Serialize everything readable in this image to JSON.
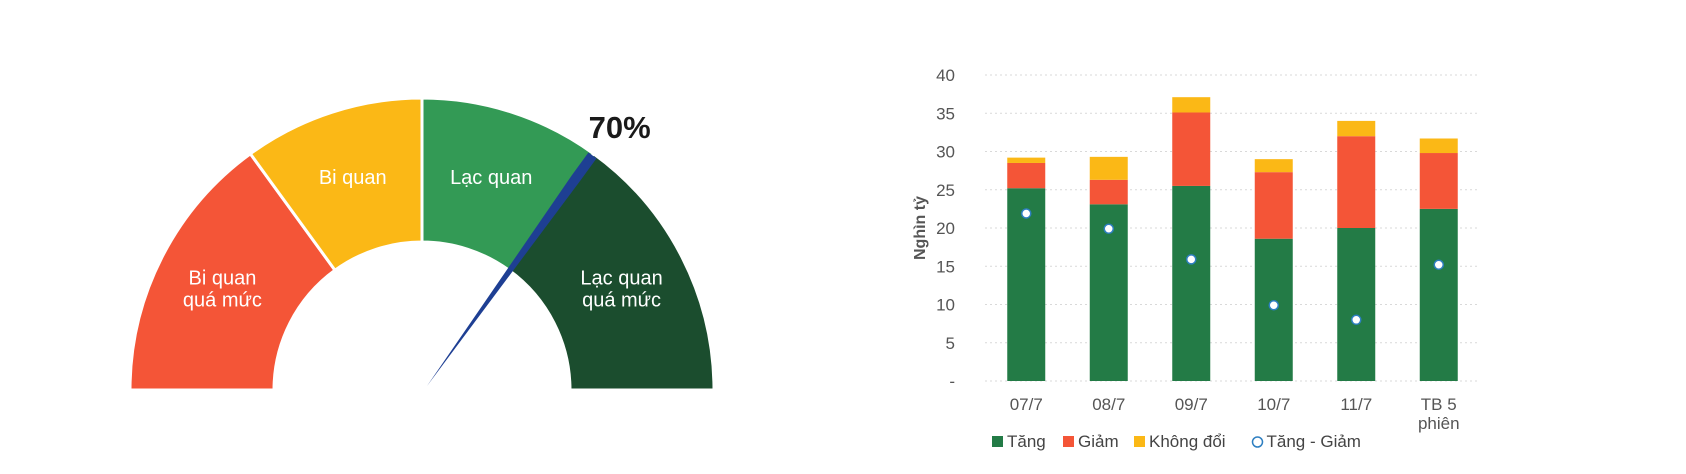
{
  "chart_data": [
    {
      "type": "gauge",
      "value": 70,
      "value_label": "70%",
      "min": 0,
      "max": 100,
      "segments": [
        {
          "lines": [
            "Bi quan",
            "quá mức"
          ],
          "from": 0,
          "to": 30,
          "color": "#f45537"
        },
        {
          "lines": [
            "Bi quan"
          ],
          "from": 30,
          "to": 50,
          "color": "#fbb816"
        },
        {
          "lines": [
            "Lạc quan"
          ],
          "from": 50,
          "to": 70,
          "color": "#339a55"
        },
        {
          "lines": [
            "Lạc quan",
            "quá mức"
          ],
          "from": 70,
          "to": 100,
          "color": "#1b4d2e"
        }
      ],
      "needle_color": "#1e3f93"
    },
    {
      "type": "bar",
      "stacked": true,
      "categories": [
        [
          "07/7"
        ],
        [
          "08/7"
        ],
        [
          "09/7"
        ],
        [
          "10/7"
        ],
        [
          "11/7"
        ],
        [
          "TB 5",
          "phiên"
        ]
      ],
      "ylabel": "Nghìn tỷ",
      "ylim": [
        0,
        40
      ],
      "yticks": [
        0,
        5,
        10,
        15,
        20,
        25,
        30,
        35,
        40
      ],
      "ytick_labels": [
        "-",
        "5",
        "10",
        "15",
        "20",
        "25",
        "30",
        "35",
        "40"
      ],
      "grid": true,
      "legend_position": "bottom",
      "series": [
        {
          "name": "Tăng",
          "color": "#237b46",
          "values": [
            25.2,
            23.1,
            25.5,
            18.6,
            20.0,
            22.5
          ]
        },
        {
          "name": "Giảm",
          "color": "#f45537",
          "values": [
            3.3,
            3.2,
            9.6,
            8.7,
            12.0,
            7.3
          ]
        },
        {
          "name": "Không đổi",
          "color": "#fbb816",
          "values": [
            0.7,
            3.0,
            2.0,
            1.7,
            2.0,
            1.9
          ]
        }
      ],
      "line_series": {
        "name": "Tăng - Giảm",
        "marker": "circle",
        "color": "#2e7fc1",
        "values": [
          21.9,
          19.9,
          15.9,
          9.9,
          8.0,
          15.2
        ]
      }
    }
  ]
}
